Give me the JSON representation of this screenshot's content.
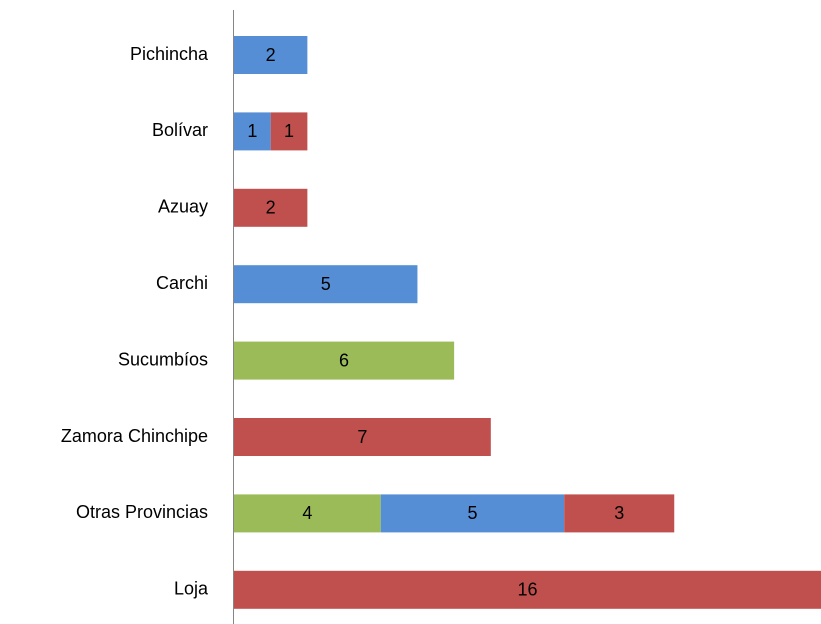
{
  "chart_data": {
    "type": "stacked-barh",
    "categories": [
      "Pichincha",
      "Bolívar",
      "Azuay",
      "Carchi",
      "Sucumbíos",
      "Zamora Chinchipe",
      "Otras Provincias",
      "Loja"
    ],
    "series": [
      {
        "color": "#9bbb59",
        "values": [
          null,
          null,
          null,
          null,
          6,
          null,
          4,
          null
        ]
      },
      {
        "color": "#558ed5",
        "values": [
          2,
          1,
          null,
          5,
          null,
          null,
          5,
          null
        ]
      },
      {
        "color": "#c0504d",
        "values": [
          null,
          1,
          2,
          null,
          null,
          7,
          3,
          16
        ]
      }
    ],
    "xlim": [
      0,
      16
    ]
  }
}
